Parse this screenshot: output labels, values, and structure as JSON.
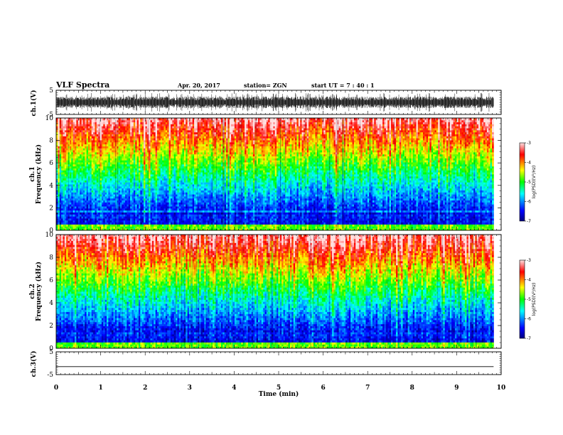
{
  "header": {
    "title": "VLF Spectra",
    "date": "Apr. 20, 2017",
    "station": "station= ZGN",
    "start": "start  UT =   7 : 40 : 1"
  },
  "chart_data": [
    {
      "type": "line",
      "name": "ch1-waveform",
      "ylabel": "ch.1(V)",
      "yticks": [
        "5",
        "-5"
      ],
      "ylim": [
        -5,
        5
      ]
    },
    {
      "type": "heatmap",
      "name": "ch1-spectrogram",
      "ylabel_top": "ch.1",
      "ylabel": "Frequency (kHz)",
      "yticks": [
        "0",
        "2",
        "4",
        "6",
        "8",
        "10"
      ],
      "ylim": [
        0,
        10
      ],
      "colorbar": {
        "ticks": [
          "-3",
          "-4",
          "-5",
          "-6",
          "-7"
        ],
        "label": "log(PSD)(V²/Hz)",
        "range": [
          -7,
          -3
        ]
      }
    },
    {
      "type": "heatmap",
      "name": "ch2-spectrogram",
      "ylabel_top": "ch.2",
      "ylabel": "Frequency (kHz)",
      "yticks": [
        "0",
        "2",
        "4",
        "6",
        "8",
        "10"
      ],
      "ylim": [
        0,
        10
      ],
      "colorbar": {
        "ticks": [
          "-3",
          "-4",
          "-5",
          "-6",
          "-7"
        ],
        "label": "log(PSD)(V²/Hz)",
        "range": [
          -7,
          -3
        ]
      }
    },
    {
      "type": "line",
      "name": "ch3-waveform",
      "ylabel": "ch.3(V)",
      "yticks": [
        "5",
        "-5"
      ],
      "ylim": [
        -5,
        5
      ],
      "value": -1.5
    }
  ],
  "xaxis": {
    "label": "Time (min)",
    "ticks": [
      "0",
      "1",
      "2",
      "3",
      "4",
      "5",
      "6",
      "7",
      "8",
      "9",
      "10"
    ],
    "xlim": [
      0,
      10
    ],
    "data_end": 9.83
  },
  "colors": {
    "frame": "#000000",
    "background": "#ffffff"
  }
}
